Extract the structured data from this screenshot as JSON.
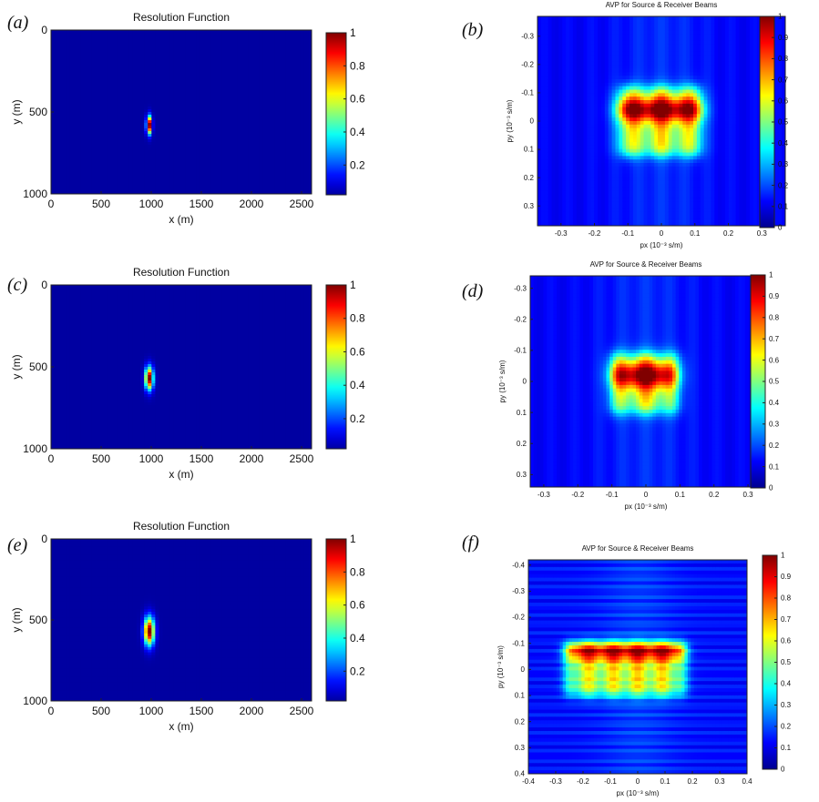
{
  "figure": {
    "panel_labels": [
      "(a)",
      "(b)",
      "(c)",
      "(d)",
      "(e)",
      "(f)"
    ]
  },
  "colors": {
    "jet": [
      "#00008f",
      "#0000ff",
      "#0080ff",
      "#00ffff",
      "#80ff80",
      "#ffff00",
      "#ff8000",
      "#ff0000",
      "#800000"
    ],
    "background": "#000090"
  },
  "chart_data": [
    {
      "id": "a",
      "type": "heatmap",
      "title": "Resolution Function",
      "xlabel": "x (m)",
      "ylabel": "y  (m)",
      "xlim": [
        0,
        2600
      ],
      "ylim": [
        0,
        1000
      ],
      "y_reversed": true,
      "xticks": [
        "0",
        "500",
        "1000",
        "1500",
        "2000",
        "2500"
      ],
      "xtick_values": [
        0,
        500,
        1000,
        1500,
        2000,
        2500
      ],
      "yticks": [
        "0",
        "500",
        "1000"
      ],
      "ytick_values": [
        0,
        500,
        1000
      ],
      "colorbar": {
        "ticks": [
          "0.2",
          "0.4",
          "0.6",
          "0.8",
          "1"
        ],
        "values": [
          0.2,
          0.4,
          0.6,
          0.8,
          1.0
        ],
        "range": [
          0.02,
          1.0
        ]
      },
      "peak": {
        "x": 980,
        "y": 580,
        "value": 1.0,
        "sigma_x": 18,
        "sigma_y": 38
      }
    },
    {
      "id": "b",
      "type": "heatmap",
      "title": "AVP for Source & Receiver Beams",
      "xlabel": "px (10⁻³ s/m)",
      "ylabel": "py (10⁻³ s/m)",
      "xlim": [
        -0.37,
        0.37
      ],
      "ylim": [
        -0.37,
        0.37
      ],
      "y_reversed": true,
      "xticks": [
        "-0.3",
        "-0.2",
        "-0.1",
        "0",
        "0.1",
        "0.2",
        "0.3"
      ],
      "xtick_values": [
        -0.3,
        -0.2,
        -0.1,
        0,
        0.1,
        0.2,
        0.3
      ],
      "yticks": [
        "-0.3",
        "-0.2",
        "-0.1",
        "0",
        "0.1",
        "0.2",
        "0.3"
      ],
      "ytick_values": [
        -0.3,
        -0.2,
        -0.1,
        0,
        0.1,
        0.2,
        0.3
      ],
      "colorbar": {
        "ticks": [
          "0",
          "0.1",
          "0.2",
          "0.3",
          "0.4",
          "0.5",
          "0.6",
          "0.7",
          "0.8",
          "0.9",
          "1"
        ],
        "values": [
          0,
          0.1,
          0.2,
          0.3,
          0.4,
          0.5,
          0.6,
          0.7,
          0.8,
          0.9,
          1.0
        ],
        "range": [
          0,
          1.0
        ]
      },
      "region": {
        "x": [
          -0.13,
          0.12
        ],
        "y": [
          -0.12,
          0.12
        ],
        "peak_row_y": -0.04,
        "peak_value": 1.0
      }
    },
    {
      "id": "c",
      "type": "heatmap",
      "title": "Resolution Function",
      "xlabel": "x (m)",
      "ylabel": "y  (m)",
      "xlim": [
        0,
        2600
      ],
      "ylim": [
        0,
        1000
      ],
      "y_reversed": true,
      "xticks": [
        "0",
        "500",
        "1000",
        "1500",
        "2000",
        "2500"
      ],
      "xtick_values": [
        0,
        500,
        1000,
        1500,
        2000,
        2500
      ],
      "yticks": [
        "0",
        "500",
        "1000"
      ],
      "ytick_values": [
        0,
        500,
        1000
      ],
      "colorbar": {
        "ticks": [
          "0.2",
          "0.4",
          "0.6",
          "0.8",
          "1"
        ],
        "values": [
          0.2,
          0.4,
          0.6,
          0.8,
          1.0
        ],
        "range": [
          0.02,
          1.0
        ]
      },
      "peak": {
        "x": 980,
        "y": 570,
        "value": 1.0,
        "sigma_x": 28,
        "sigma_y": 48
      }
    },
    {
      "id": "d",
      "type": "heatmap",
      "title": "AVP for Source & Receiver Beams",
      "xlabel": "px (10⁻³ s/m)",
      "ylabel": "py (10⁻³ s/m)",
      "xlim": [
        -0.34,
        0.34
      ],
      "ylim": [
        -0.34,
        0.34
      ],
      "y_reversed": true,
      "xticks": [
        "-0.3",
        "-0.2",
        "-0.1",
        "0",
        "0.1",
        "0.2",
        "0.3"
      ],
      "xtick_values": [
        -0.3,
        -0.2,
        -0.1,
        0,
        0.1,
        0.2,
        0.3
      ],
      "yticks": [
        "-0.3",
        "-0.2",
        "-0.1",
        "0",
        "0.1",
        "0.2",
        "0.3"
      ],
      "ytick_values": [
        -0.3,
        -0.2,
        -0.1,
        0,
        0.1,
        0.2,
        0.3
      ],
      "colorbar": {
        "ticks": [
          "0",
          "0.1",
          "0.2",
          "0.3",
          "0.4",
          "0.5",
          "0.6",
          "0.7",
          "0.8",
          "0.9",
          "1"
        ],
        "values": [
          0,
          0.1,
          0.2,
          0.3,
          0.4,
          0.5,
          0.6,
          0.7,
          0.8,
          0.9,
          1.0
        ],
        "range": [
          0,
          1.0
        ]
      },
      "region": {
        "x": [
          -0.1,
          0.09
        ],
        "y": [
          -0.09,
          0.1
        ],
        "peak_row_y": -0.02,
        "peak_value": 1.0
      }
    },
    {
      "id": "e",
      "type": "heatmap",
      "title": "Resolution Function",
      "xlabel": "x (m)",
      "ylabel": "y  (m)",
      "xlim": [
        0,
        2600
      ],
      "ylim": [
        0,
        1000
      ],
      "y_reversed": true,
      "xticks": [
        "0",
        "500",
        "1000",
        "1500",
        "2000",
        "2500"
      ],
      "xtick_values": [
        0,
        500,
        1000,
        1500,
        2000,
        2500
      ],
      "yticks": [
        "0",
        "500",
        "1000"
      ],
      "ytick_values": [
        0,
        500,
        1000
      ],
      "colorbar": {
        "ticks": [
          "0.2",
          "0.4",
          "0.6",
          "0.8",
          "1"
        ],
        "values": [
          0.2,
          0.4,
          0.6,
          0.8,
          1.0
        ],
        "range": [
          0.02,
          1.0
        ]
      },
      "peak": {
        "x": 980,
        "y": 570,
        "value": 1.0,
        "sigma_x": 36,
        "sigma_y": 60
      }
    },
    {
      "id": "f",
      "type": "heatmap",
      "title": "AVP for Source & Receiver Beams",
      "xlabel": "px (10⁻³ s/m)",
      "ylabel": "py (10⁻³ s/m)",
      "xlim": [
        -0.4,
        0.4
      ],
      "ylim": [
        -0.42,
        0.4
      ],
      "y_reversed": true,
      "xticks": [
        "-0.4",
        "-0.3",
        "-0.2",
        "-0.1",
        "0",
        "0.1",
        "0.2",
        "0.3",
        "0.4"
      ],
      "xtick_values": [
        -0.4,
        -0.3,
        -0.2,
        -0.1,
        0,
        0.1,
        0.2,
        0.3,
        0.4
      ],
      "yticks": [
        "-0.4",
        "-0.3",
        "-0.2",
        "-0.1",
        "0",
        "0.1",
        "0.2",
        "0.3",
        "0.4"
      ],
      "ytick_values": [
        -0.4,
        -0.3,
        -0.2,
        -0.1,
        0,
        0.1,
        0.2,
        0.3,
        0.4
      ],
      "colorbar": {
        "ticks": [
          "0",
          "0.1",
          "0.2",
          "0.3",
          "0.4",
          "0.5",
          "0.6",
          "0.7",
          "0.8",
          "0.9",
          "1"
        ],
        "values": [
          0,
          0.1,
          0.2,
          0.3,
          0.4,
          0.5,
          0.6,
          0.7,
          0.8,
          0.9,
          1.0
        ],
        "range": [
          0,
          1.0
        ]
      },
      "region": {
        "x": [
          -0.26,
          0.17
        ],
        "y": [
          -0.1,
          0.1
        ],
        "peak_row_y": -0.08,
        "peak_value": 1.0
      }
    }
  ]
}
